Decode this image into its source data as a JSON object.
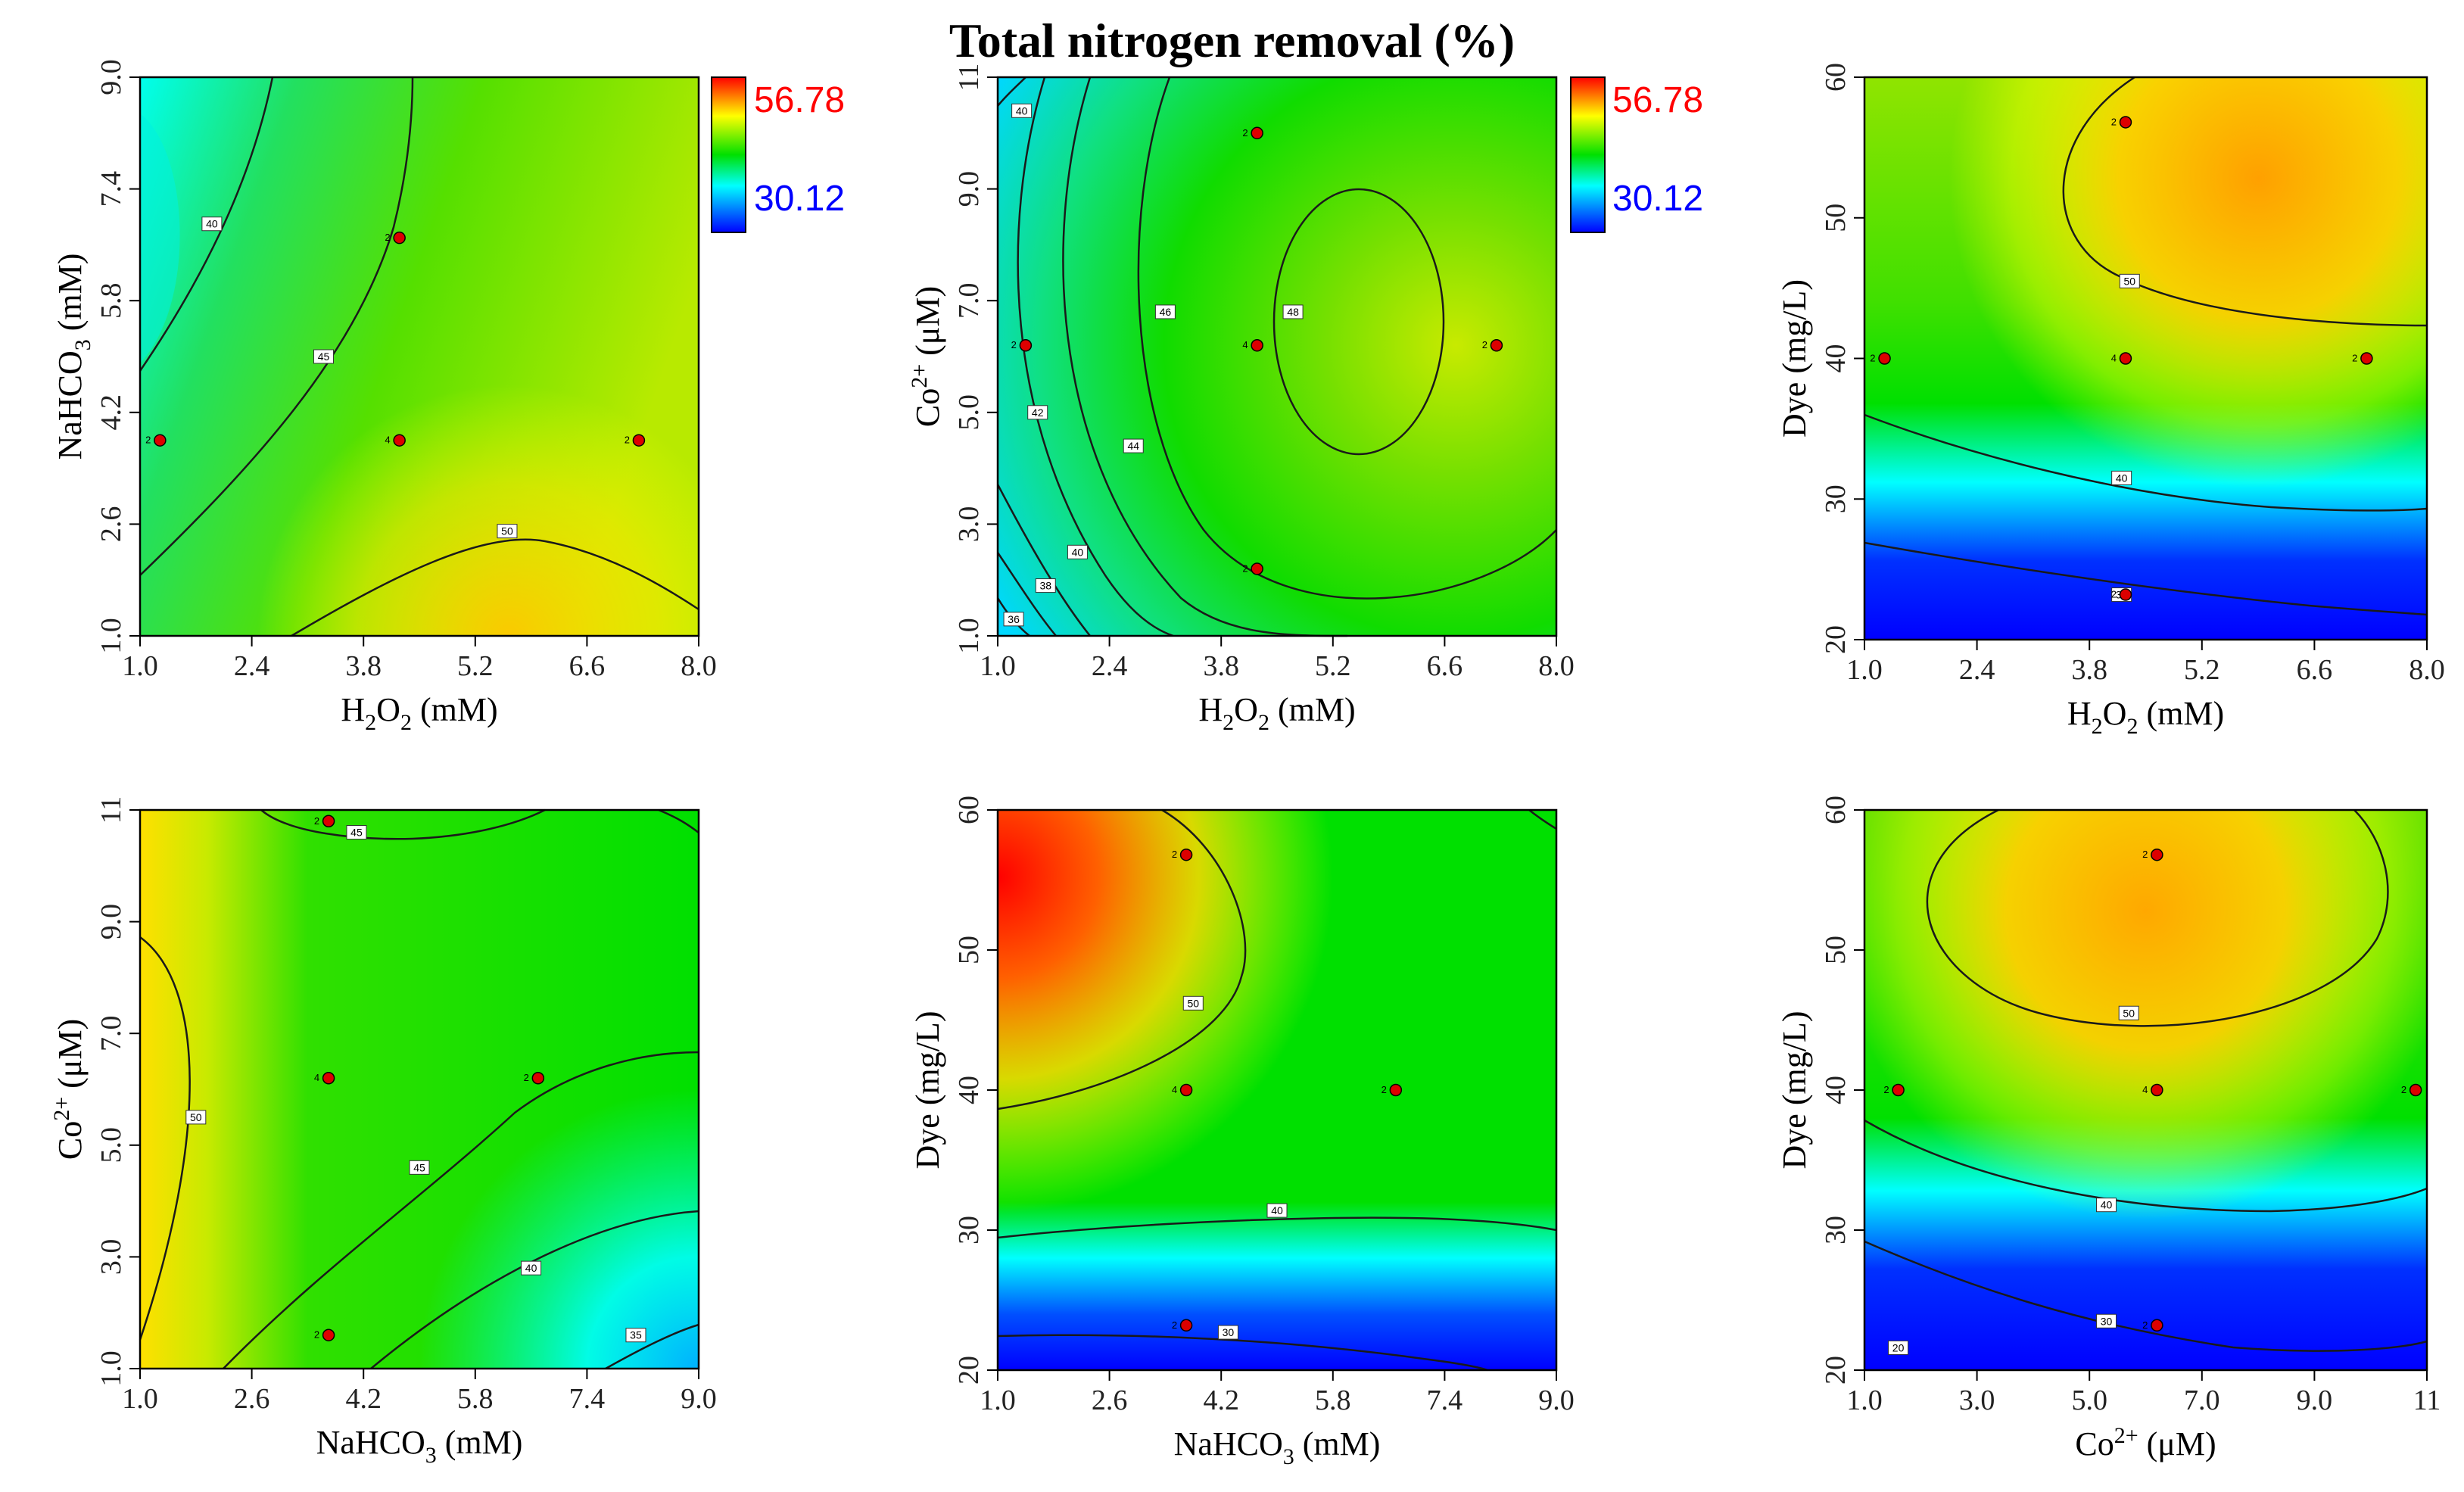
{
  "title": "Total nitrogen removal (%)",
  "colors": {
    "high": "#ff0000",
    "mid": "#00e000",
    "low": "#0000ff",
    "legend_max": "#ff0000",
    "legend_min": "#0000ff"
  },
  "colorbar": {
    "max_label": "56.78",
    "min_label": "30.12"
  },
  "chart_data": [
    {
      "type": "heatmap",
      "subtype": "contour",
      "xlabel": "H2O2 (mM)",
      "ylabel": "NaHCO3 (mM)",
      "xlim": [
        1.0,
        8.0
      ],
      "ylim": [
        1.0,
        9.0
      ],
      "xticks": [
        "1.0",
        "2.4",
        "3.8",
        "5.2",
        "6.6",
        "8.0"
      ],
      "yticks": [
        "1.0",
        "2.6",
        "4.2",
        "5.8",
        "7.4",
        "9.0"
      ],
      "contour_labels": [
        {
          "value": "40",
          "x": 1.9,
          "y": 6.9
        },
        {
          "value": "45",
          "x": 3.3,
          "y": 5.0
        },
        {
          "value": "50",
          "x": 5.6,
          "y": 2.5
        }
      ],
      "design_points": [
        {
          "x": 1.25,
          "y": 3.8,
          "n": "2"
        },
        {
          "x": 4.25,
          "y": 6.7,
          "n": "2"
        },
        {
          "x": 4.25,
          "y": 3.8,
          "n": "4"
        },
        {
          "x": 7.25,
          "y": 3.8,
          "n": "2"
        }
      ]
    },
    {
      "type": "heatmap",
      "subtype": "contour",
      "xlabel": "H2O2 (mM)",
      "ylabel": "Co2+ (μM)",
      "xlim": [
        1.0,
        8.0
      ],
      "ylim": [
        1.0,
        11.0
      ],
      "xticks": [
        "1.0",
        "2.4",
        "3.8",
        "5.2",
        "6.6",
        "8.0"
      ],
      "yticks": [
        "1.0",
        "3.0",
        "5.0",
        "7.0",
        "9.0",
        "11"
      ],
      "contour_labels": [
        {
          "value": "46",
          "x": 3.1,
          "y": 6.8
        },
        {
          "value": "48",
          "x": 4.7,
          "y": 6.8
        },
        {
          "value": "42",
          "x": 1.5,
          "y": 5.0
        },
        {
          "value": "44",
          "x": 2.7,
          "y": 4.4
        },
        {
          "value": "40",
          "x": 2.0,
          "y": 2.5
        },
        {
          "value": "38",
          "x": 1.6,
          "y": 1.9
        },
        {
          "value": "36",
          "x": 1.2,
          "y": 1.3
        },
        {
          "value": "40",
          "x": 1.3,
          "y": 10.4
        }
      ],
      "design_points": [
        {
          "x": 4.25,
          "y": 10.0,
          "n": "2"
        },
        {
          "x": 1.35,
          "y": 6.2,
          "n": "2"
        },
        {
          "x": 4.25,
          "y": 6.2,
          "n": "4"
        },
        {
          "x": 7.25,
          "y": 6.2,
          "n": "2"
        },
        {
          "x": 4.25,
          "y": 2.2,
          "n": "2"
        }
      ]
    },
    {
      "type": "heatmap",
      "subtype": "contour",
      "xlabel": "H2O2 (mM)",
      "ylabel": "Dye (mg/L)",
      "xlim": [
        1.0,
        8.0
      ],
      "ylim": [
        20,
        60
      ],
      "xticks": [
        "1.0",
        "2.4",
        "3.8",
        "5.2",
        "6.6",
        "8.0"
      ],
      "yticks": [
        "20",
        "30",
        "40",
        "50",
        "60"
      ],
      "contour_labels": [
        {
          "value": "50",
          "x": 4.3,
          "y": 45.5
        },
        {
          "value": "40",
          "x": 4.2,
          "y": 31.5
        },
        {
          "value": "30",
          "x": 4.2,
          "y": 23.2
        }
      ],
      "design_points": [
        {
          "x": 4.25,
          "y": 56.8,
          "n": "2"
        },
        {
          "x": 1.25,
          "y": 40,
          "n": "2"
        },
        {
          "x": 4.25,
          "y": 40,
          "n": "4"
        },
        {
          "x": 7.25,
          "y": 40,
          "n": "2"
        },
        {
          "x": 4.25,
          "y": 23.2,
          "n": "2"
        }
      ]
    },
    {
      "type": "heatmap",
      "subtype": "contour",
      "xlabel": "NaHCO3 (mM)",
      "ylabel": "Co2+ (μM)",
      "xlim": [
        1.0,
        9.0
      ],
      "ylim": [
        1.0,
        11.0
      ],
      "xticks": [
        "1.0",
        "2.6",
        "4.2",
        "5.8",
        "7.4",
        "9.0"
      ],
      "yticks": [
        "1.0",
        "3.0",
        "5.0",
        "7.0",
        "9.0",
        "11"
      ],
      "contour_labels": [
        {
          "value": "45",
          "x": 4.1,
          "y": 10.6
        },
        {
          "value": "50",
          "x": 1.8,
          "y": 5.5
        },
        {
          "value": "45",
          "x": 5.0,
          "y": 4.6
        },
        {
          "value": "40",
          "x": 6.6,
          "y": 2.8
        },
        {
          "value": "35",
          "x": 8.1,
          "y": 1.6
        }
      ],
      "design_points": [
        {
          "x": 3.7,
          "y": 10.8,
          "n": "2"
        },
        {
          "x": 3.7,
          "y": 6.2,
          "n": "4"
        },
        {
          "x": 6.7,
          "y": 6.2,
          "n": "2"
        },
        {
          "x": 3.7,
          "y": 1.6,
          "n": "2"
        }
      ]
    },
    {
      "type": "heatmap",
      "subtype": "contour",
      "xlabel": "NaHCO3 (mM)",
      "ylabel": "Dye (mg/L)",
      "xlim": [
        1.0,
        9.0
      ],
      "ylim": [
        20,
        60
      ],
      "xticks": [
        "1.0",
        "2.6",
        "4.2",
        "5.8",
        "7.4",
        "9.0"
      ],
      "yticks": [
        "20",
        "30",
        "40",
        "50",
        "60"
      ],
      "contour_labels": [
        {
          "value": "50",
          "x": 3.8,
          "y": 46.2
        },
        {
          "value": "40",
          "x": 5.0,
          "y": 31.4
        },
        {
          "value": "30",
          "x": 4.3,
          "y": 22.7
        }
      ],
      "design_points": [
        {
          "x": 3.7,
          "y": 56.8,
          "n": "2"
        },
        {
          "x": 3.7,
          "y": 40,
          "n": "4"
        },
        {
          "x": 6.7,
          "y": 40,
          "n": "2"
        },
        {
          "x": 3.7,
          "y": 23.2,
          "n": "2"
        }
      ]
    },
    {
      "type": "heatmap",
      "subtype": "contour",
      "xlabel": "Co2+ (μM)",
      "ylabel": "Dye (mg/L)",
      "xlim": [
        1.0,
        11.0
      ],
      "ylim": [
        20,
        60
      ],
      "xticks": [
        "1.0",
        "3.0",
        "5.0",
        "7.0",
        "9.0",
        "11"
      ],
      "yticks": [
        "20",
        "30",
        "40",
        "50",
        "60"
      ],
      "contour_labels": [
        {
          "value": "50",
          "x": 5.7,
          "y": 45.5
        },
        {
          "value": "40",
          "x": 5.3,
          "y": 31.8
        },
        {
          "value": "30",
          "x": 5.3,
          "y": 23.5
        },
        {
          "value": "20",
          "x": 1.6,
          "y": 21.6
        }
      ],
      "design_points": [
        {
          "x": 6.2,
          "y": 56.8,
          "n": "2"
        },
        {
          "x": 1.6,
          "y": 40,
          "n": "2"
        },
        {
          "x": 6.2,
          "y": 40,
          "n": "4"
        },
        {
          "x": 10.8,
          "y": 40,
          "n": "2"
        },
        {
          "x": 6.2,
          "y": 23.2,
          "n": "2"
        }
      ]
    }
  ]
}
